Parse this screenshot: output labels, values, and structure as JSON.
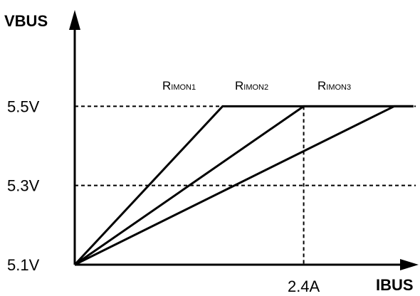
{
  "chart_data": {
    "type": "line",
    "xlabel": "IBUS",
    "ylabel": "VBUS",
    "x_ticks": [
      {
        "value": 2.4,
        "label": "2.4A"
      }
    ],
    "y_ticks": [
      {
        "value": 5.1,
        "label": "5.1V"
      },
      {
        "value": 5.3,
        "label": "5.3V"
      },
      {
        "value": 5.5,
        "label": "5.5V"
      }
    ],
    "xlim": [
      0,
      3.5
    ],
    "ylim": [
      5.1,
      5.7
    ],
    "grid": false,
    "reference_lines": [
      {
        "orientation": "horizontal",
        "value": 5.5,
        "style": "dashed"
      },
      {
        "orientation": "horizontal",
        "value": 5.3,
        "style": "dashed"
      },
      {
        "orientation": "vertical",
        "value": 2.4,
        "style": "dashed"
      }
    ],
    "series": [
      {
        "name": "RIMON1",
        "label_main": "R",
        "label_sub": "IMON1",
        "points": [
          [
            0,
            5.1
          ],
          [
            1.55,
            5.5
          ],
          [
            3.55,
            5.5
          ]
        ]
      },
      {
        "name": "RIMON2",
        "label_main": "R",
        "label_sub": "IMON2",
        "points": [
          [
            0,
            5.1
          ],
          [
            2.4,
            5.5
          ],
          [
            3.55,
            5.5
          ]
        ]
      },
      {
        "name": "RIMON3",
        "label_main": "R",
        "label_sub": "IMON3",
        "points": [
          [
            0,
            5.1
          ],
          [
            3.35,
            5.5
          ],
          [
            3.55,
            5.5
          ]
        ]
      }
    ]
  }
}
